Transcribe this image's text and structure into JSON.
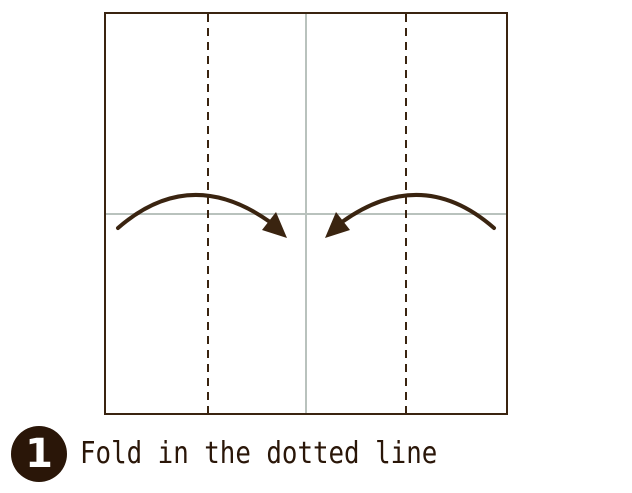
{
  "step": {
    "number": "1",
    "instruction": "Fold in the dotted line"
  },
  "colors": {
    "paper_edge": "#3a2410",
    "center_crease": "#b9c2bd",
    "fold_line": "#3a2410",
    "arrow": "#3a2410",
    "badge": "#2a1608"
  },
  "icons": {
    "left_arrow": "curved-arrow-right-icon",
    "right_arrow": "curved-arrow-left-icon"
  }
}
